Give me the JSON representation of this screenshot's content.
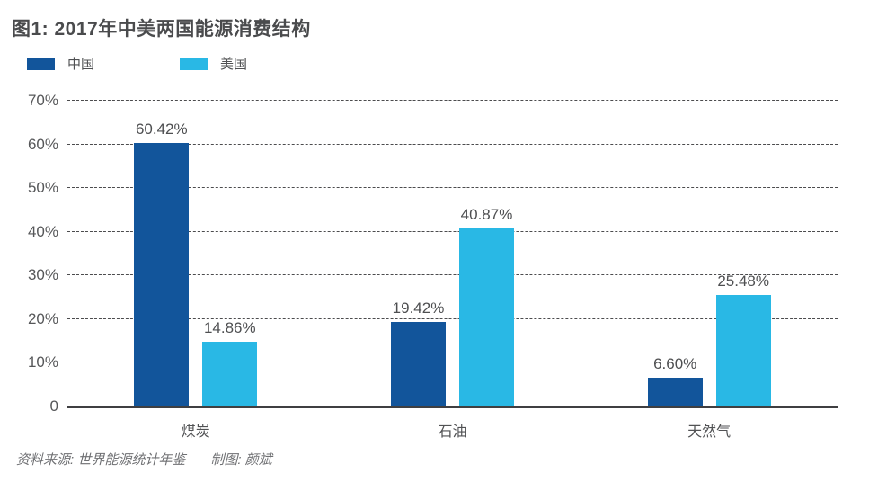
{
  "header": {
    "title": "图1: 2017年中美两国能源消费结构"
  },
  "chart_data": {
    "type": "bar",
    "title": "图1: 2017年中美两国能源消费结构",
    "categories": [
      "煤炭",
      "石油",
      "天然气"
    ],
    "series": [
      {
        "name": "中国",
        "color": "#12559B",
        "values": [
          60.42,
          19.42,
          6.6
        ],
        "labels": [
          "60.42%",
          "19.42%",
          "6.60%"
        ]
      },
      {
        "name": "美国",
        "color": "#29B8E5",
        "values": [
          14.86,
          40.87,
          25.48
        ],
        "labels": [
          "14.86%",
          "40.87%",
          "25.48%"
        ]
      }
    ],
    "ylim": [
      0,
      70
    ],
    "y_ticks": [
      "0",
      "10%",
      "20%",
      "30%",
      "40%",
      "50%",
      "60%",
      "70%"
    ],
    "grid": "horizontal-dashed",
    "legend_position": "top-left"
  },
  "footer": {
    "source": "资料来源: 世界能源统计年鉴",
    "credit": "制图: 颜斌"
  }
}
